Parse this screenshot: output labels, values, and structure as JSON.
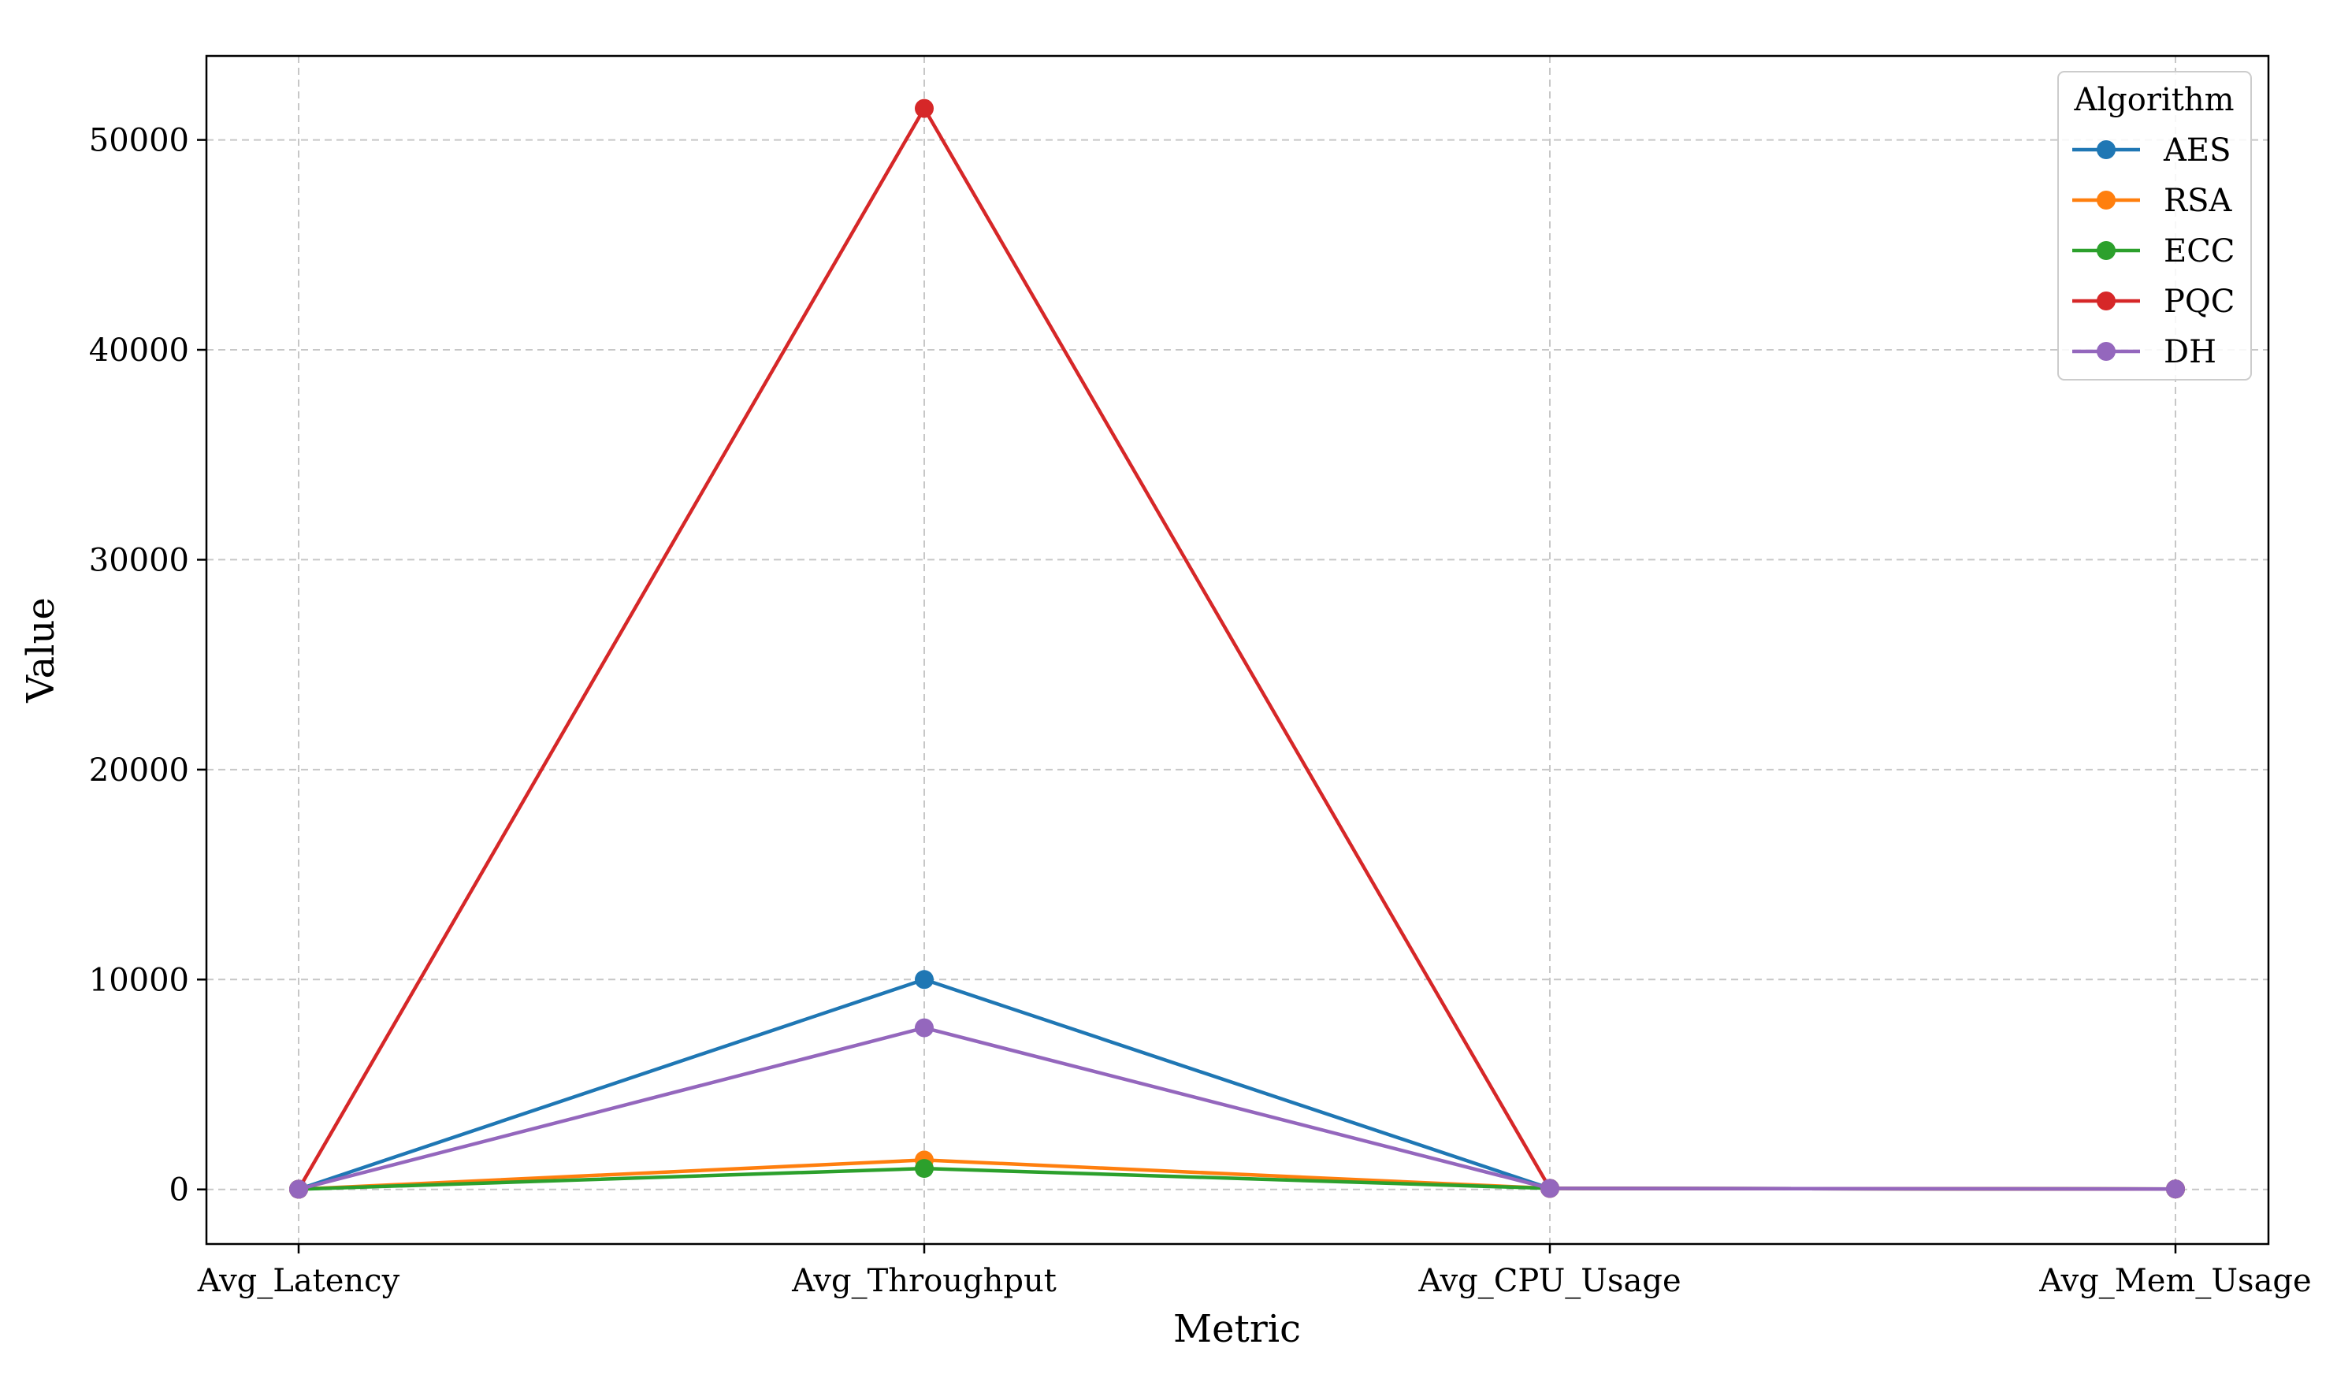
{
  "chart_data": {
    "type": "line",
    "xlabel": "Metric",
    "ylabel": "Value",
    "categories": [
      "Avg_Latency",
      "Avg_Throughput",
      "Avg_CPU_Usage",
      "Avg_Mem_Usage"
    ],
    "yticks": [
      0,
      10000,
      20000,
      30000,
      40000,
      50000
    ],
    "ylim": [
      -2600,
      54000
    ],
    "grid": true,
    "legend": {
      "title": "Algorithm",
      "placement": "top-right"
    },
    "series": [
      {
        "name": "AES",
        "color": "#1f77b4",
        "values": [
          10,
          10000,
          50,
          20
        ]
      },
      {
        "name": "RSA",
        "color": "#ff7f0e",
        "values": [
          10,
          1400,
          50,
          20
        ]
      },
      {
        "name": "ECC",
        "color": "#2ca02c",
        "values": [
          10,
          1000,
          50,
          20
        ]
      },
      {
        "name": "PQC",
        "color": "#d62728",
        "values": [
          10,
          51500,
          50,
          20
        ]
      },
      {
        "name": "DH",
        "color": "#9467bd",
        "values": [
          10,
          7700,
          50,
          20
        ]
      }
    ]
  }
}
